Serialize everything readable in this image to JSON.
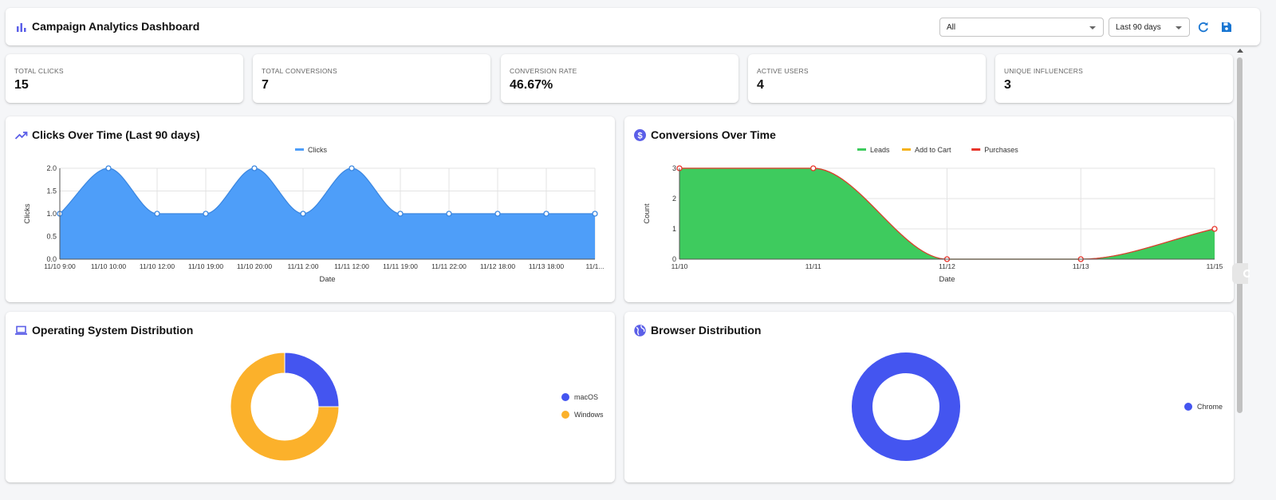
{
  "header": {
    "title": "Campaign Analytics Dashboard",
    "filter_value": "All",
    "range_value": "Last 90 days",
    "icons": [
      "bar-chart-icon",
      "refresh-icon",
      "save-icon"
    ]
  },
  "stats": [
    {
      "label": "TOTAL CLICKS",
      "value": "15"
    },
    {
      "label": "TOTAL CONVERSIONS",
      "value": "7"
    },
    {
      "label": "CONVERSION RATE",
      "value": "46.67%"
    },
    {
      "label": "ACTIVE USERS",
      "value": "4"
    },
    {
      "label": "UNIQUE INFLUENCERS",
      "value": "3"
    }
  ],
  "panels": {
    "clicks": {
      "title": "Clicks Over Time (Last 90 days)",
      "icon": "trending-up-icon"
    },
    "conversions": {
      "title": "Conversions Over Time",
      "icon": "dollar-circle-icon"
    },
    "os": {
      "title": "Operating System Distribution",
      "icon": "laptop-icon"
    },
    "browser": {
      "title": "Browser Distribution",
      "icon": "globe-icon"
    }
  },
  "colors": {
    "accent": "#5b5fe8",
    "clicks": "#4e9ef9",
    "leads": "#3ecb5e",
    "add_to_cart": "#f5b21b",
    "purchases": "#e8352b",
    "macos": "#4455f0",
    "windows": "#fbb12b",
    "chrome": "#4455f0"
  },
  "chart_data": [
    {
      "type": "area",
      "legend": [
        "Clicks"
      ],
      "categories": [
        "11/10 9:00",
        "11/10 10:00",
        "11/10 12:00",
        "11/10 19:00",
        "11/10 20:00",
        "11/11 2:00",
        "11/11 12:00",
        "11/11 19:00",
        "11/11 22:00",
        "11/12 18:00",
        "11/13 18:00",
        "11/1..."
      ],
      "series": [
        {
          "name": "Clicks",
          "values": [
            1,
            2,
            1,
            1,
            2,
            1,
            2,
            1,
            1,
            1,
            1,
            1
          ]
        }
      ],
      "xlabel": "Date",
      "ylabel": "Clicks",
      "ylim": [
        0,
        2
      ],
      "yticks": [
        "0.0",
        "0.5",
        "1.0",
        "1.5",
        "2.0"
      ],
      "grid": true,
      "legend_position": "top"
    },
    {
      "type": "area",
      "legend": [
        "Leads",
        "Add to Cart",
        "Purchases"
      ],
      "categories": [
        "11/10",
        "11/11",
        "11/12",
        "11/13",
        "11/15"
      ],
      "series": [
        {
          "name": "Leads",
          "values": [
            3,
            3,
            0,
            0,
            1
          ]
        },
        {
          "name": "Add to Cart",
          "values": [
            0,
            0,
            0,
            0,
            0
          ]
        },
        {
          "name": "Purchases",
          "values": [
            3,
            3,
            0,
            0,
            1
          ]
        }
      ],
      "xlabel": "Date",
      "ylabel": "Count",
      "ylim": [
        0,
        3
      ],
      "yticks": [
        "0",
        "1",
        "2",
        "3"
      ],
      "grid": true,
      "legend_position": "top"
    },
    {
      "type": "pie",
      "labels": [
        "macOS",
        "Windows"
      ],
      "values": [
        1,
        3
      ],
      "donut": true,
      "legend_position": "right"
    },
    {
      "type": "pie",
      "labels": [
        "Chrome"
      ],
      "values": [
        1
      ],
      "donut": true,
      "legend_position": "right"
    }
  ]
}
